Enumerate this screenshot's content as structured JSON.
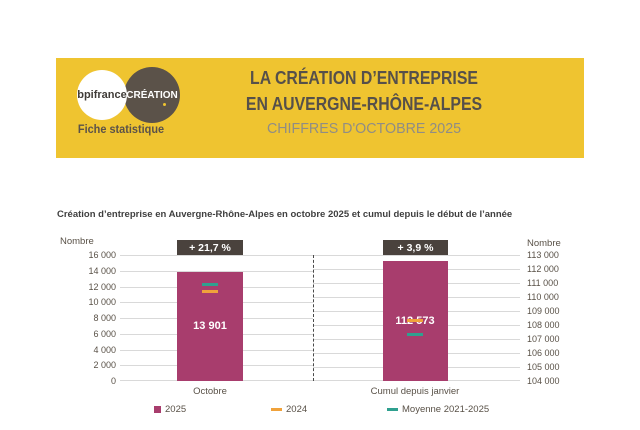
{
  "header": {
    "background_color": "#EFC430",
    "bpifrance_logo_text": "bpifrance",
    "creation_logo_text": "CRÉATION",
    "tagline": "Fiche statistique",
    "title_line1": "LA CRÉATION D’ENTREPRISE",
    "title_line2": "EN AUVERGNE-RHÔNE-ALPES",
    "subtitle": "CHIFFRES D'OCTOBRE 2025"
  },
  "chart": {
    "title": "Création d’entreprise en Auvergne-Rhône-Alpes en octobre 2025 et cumul depuis le début de l’année",
    "left_axis_label": "Nombre",
    "right_axis_label": "Nombre",
    "left_axis_ticks": [
      "16 000",
      "14 000",
      "12 000",
      "10 000",
      "8 000",
      "6 000",
      "4 000",
      "2 000",
      "0"
    ],
    "right_axis_ticks": [
      "113 000",
      "112 000",
      "111 000",
      "110 000",
      "109 000",
      "108 000",
      "107 000",
      "106 000",
      "105 000",
      "104 000"
    ],
    "badges": [
      {
        "label": "+ 21,7 %"
      },
      {
        "label": "+ 3,9 %"
      }
    ],
    "bars": [
      {
        "category": "Octobre",
        "value_label": "13 901"
      },
      {
        "category": "Cumul depuis janvier",
        "value_label": "112 573"
      }
    ],
    "legend": [
      {
        "label": "2025",
        "color": "#A83D6D",
        "marker": "square"
      },
      {
        "label": "2024",
        "color": "#F0A23B",
        "marker": "dash"
      },
      {
        "label": "Moyenne 2021-2025",
        "color": "#2FA08F",
        "marker": "dash"
      }
    ]
  },
  "chart_data": {
    "type": "bar",
    "title": "Création d’entreprise en Auvergne-Rhône-Alpes en octobre 2025 et cumul depuis le début de l’année",
    "categories": [
      "Octobre",
      "Cumul depuis janvier"
    ],
    "series": [
      {
        "name": "2025",
        "type": "bar",
        "color": "#A83D6D",
        "values": [
          13901,
          112573
        ]
      },
      {
        "name": "2024",
        "type": "tick-marker",
        "color": "#F0A23B",
        "values": [
          11400,
          108300
        ]
      },
      {
        "name": "Moyenne 2021-2025",
        "type": "tick-marker",
        "color": "#2FA08F",
        "values": [
          12300,
          107300
        ]
      }
    ],
    "annotations": [
      {
        "category": "Octobre",
        "text": "+ 21,7 %"
      },
      {
        "category": "Cumul depuis janvier",
        "text": "+ 3,9 %"
      }
    ],
    "left_axis": {
      "label": "Nombre",
      "range": [
        0,
        16000
      ],
      "tick_step": 2000,
      "applies_to_category": "Octobre"
    },
    "right_axis": {
      "label": "Nombre",
      "range": [
        104000,
        113000
      ],
      "tick_step": 1000,
      "applies_to_category": "Cumul depuis janvier"
    },
    "grid": true,
    "legend_position": "bottom"
  },
  "colors": {
    "banner_yellow": "#EFC430",
    "dark_brown": "#56504A",
    "badge_background": "#4A423D",
    "bar_magenta": "#A83D6D",
    "marker_orange": "#F0A23B",
    "marker_teal": "#2FA08F",
    "gridline_gray": "#D9D9D9",
    "axis_text": "#595147",
    "subtitle_gray": "#908D85"
  }
}
